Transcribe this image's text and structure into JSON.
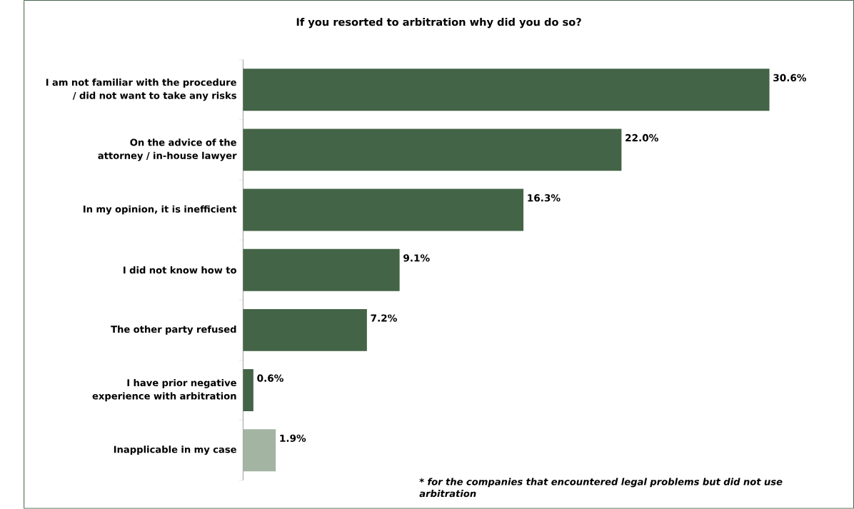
{
  "chart_data": {
    "type": "bar",
    "orientation": "horizontal",
    "title": "If you resorted to arbitration why did you do so?",
    "categories": [
      "I am not familiar with the procedure / did not want to take any risks",
      "On the advice of the attorney / in-house lawyer",
      "In my opinion, it is inefficient",
      "I did not know how to",
      "The other party refused",
      "I have prior negative experience with arbitration",
      "Inapplicable in my case"
    ],
    "values": [
      30.6,
      22.0,
      16.3,
      9.1,
      7.2,
      0.6,
      1.9
    ],
    "value_labels": [
      "30.6%",
      "22.0%",
      "16.3%",
      "9.1%",
      "7.2%",
      "0.6%",
      "1.9%"
    ],
    "colors": [
      "#436446",
      "#436446",
      "#436446",
      "#436446",
      "#436446",
      "#436446",
      "#a3b4a3"
    ],
    "annotations": [
      "* for the companies that encountered legal problems but did not use arbitration"
    ]
  }
}
